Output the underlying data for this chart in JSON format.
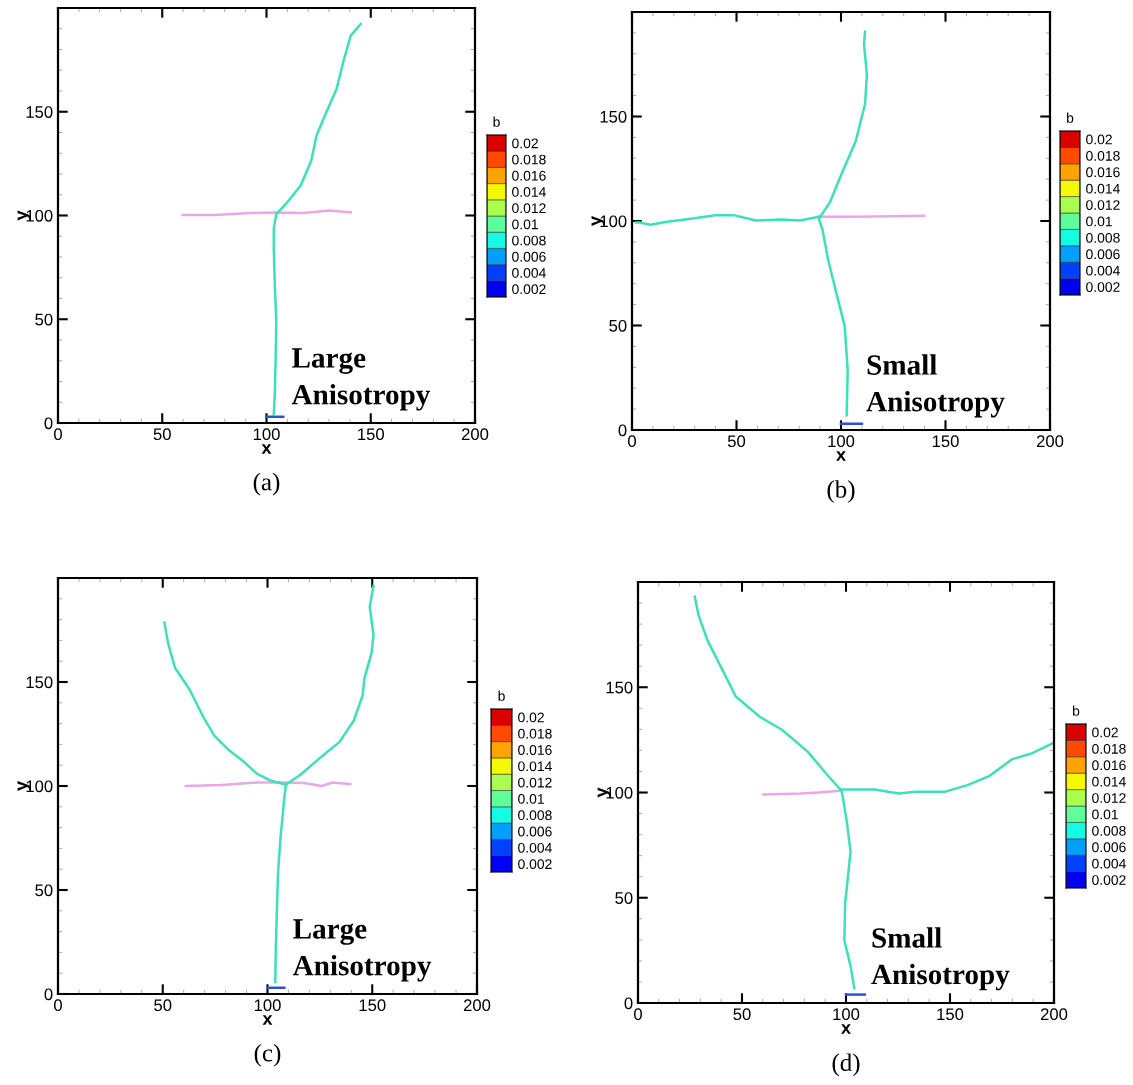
{
  "chart_data": [
    {
      "type": "line",
      "xlabel": "x",
      "ylabel": "y",
      "xlim": [
        0,
        200
      ],
      "ylim": [
        0,
        200
      ],
      "xticks": [
        0,
        50,
        100,
        150,
        200
      ],
      "yticks": [
        0,
        50,
        100,
        150
      ],
      "grid": false,
      "clabel": "b",
      "clim": [
        0.001,
        0.021
      ],
      "cticks": [
        0.002,
        0.004,
        0.006,
        0.008,
        0.01,
        0.012,
        0.014,
        0.016,
        0.018,
        0.02
      ],
      "annotations": [
        "Large\nAnisotropy",
        "(a)"
      ],
      "series": [
        {
          "color": "#e8a8e8",
          "x": [
            59.7,
            75.2,
            92.4,
            104.4,
            118,
            130,
            140.4
          ],
          "values": [
            100.2,
            100.2,
            101.2,
            101.5,
            101.2,
            102.4,
            101.5
          ]
        },
        {
          "color": "#3ee0b8",
          "x": [
            103.5,
            104,
            104.4,
            104.7,
            104,
            103.5,
            103.5,
            104.7,
            109.5,
            116.4,
            121.5,
            124,
            127.5,
            133.6,
            137,
            140.4,
            145.2
          ],
          "values": [
            4.3,
            14.6,
            31.8,
            49,
            66,
            83.5,
            93.8,
            100.7,
            105.8,
            114.5,
            126.5,
            138.6,
            147,
            161,
            174.7,
            186.7,
            192.3
          ]
        },
        {
          "color": "#3050d0",
          "x": [
            100,
            108
          ],
          "values": [
            3,
            3
          ]
        }
      ]
    },
    {
      "type": "line",
      "xlabel": "x",
      "ylabel": "y",
      "xlim": [
        0,
        200
      ],
      "ylim": [
        0,
        200
      ],
      "xticks": [
        0,
        50,
        100,
        150,
        200
      ],
      "yticks": [
        0,
        50,
        100,
        150
      ],
      "grid": false,
      "clabel": "b",
      "clim": [
        0.001,
        0.021
      ],
      "cticks": [
        0.002,
        0.004,
        0.006,
        0.008,
        0.01,
        0.012,
        0.014,
        0.016,
        0.018,
        0.02
      ],
      "annotations": [
        "Small\nAnisotropy",
        "(b)"
      ],
      "series": [
        {
          "color": "#e8a8e8",
          "x": [
            89.4,
            106.6,
            124.8,
            139.8
          ],
          "values": [
            102,
            102,
            102.3,
            102.5
          ]
        },
        {
          "color": "#3ee0b8",
          "x": [
            102.7,
            103.2,
            101.8,
            98.2,
            93.8,
            91.2,
            89.4,
            94.7,
            100.9,
            107,
            111.5,
            112.4,
            111,
            111.5
          ],
          "values": [
            7.1,
            28.4,
            49.6,
            63.8,
            81.6,
            95.7,
            101,
            109,
            124,
            138,
            156,
            170,
            184.4,
            190.6
          ]
        },
        {
          "color": "#3ee0b8",
          "x": [
            89.4,
            80.5,
            71.7,
            59.3,
            48.7,
            39.8,
            27.4,
            16.8,
            8.8,
            3.5,
            1.8
          ],
          "values": [
            102,
            100.2,
            100.7,
            100.2,
            102.8,
            102.8,
            101,
            99.6,
            98.2,
            99.3,
            99.3
          ]
        },
        {
          "color": "#3050d0",
          "x": [
            100,
            110
          ],
          "values": [
            3,
            3
          ]
        }
      ]
    },
    {
      "type": "line",
      "xlabel": "x",
      "ylabel": "y",
      "xlim": [
        0,
        200
      ],
      "ylim": [
        0,
        200
      ],
      "xticks": [
        0,
        50,
        100,
        150,
        200
      ],
      "yticks": [
        0,
        50,
        100,
        150
      ],
      "grid": false,
      "clabel": "b",
      "clim": [
        0.001,
        0.021
      ],
      "cticks": [
        0.002,
        0.004,
        0.006,
        0.008,
        0.01,
        0.012,
        0.014,
        0.016,
        0.018,
        0.02
      ],
      "annotations": [
        "Large\nAnisotropy",
        "(c)"
      ],
      "series": [
        {
          "color": "#e8a8e8",
          "x": [
            61,
            78,
            95,
            108.8,
            117.3,
            125.8,
            131,
            139.5
          ],
          "values": [
            100,
            100.5,
            101.7,
            101.7,
            101.4,
            100,
            101.7,
            100.9
          ]
        },
        {
          "color": "#3ee0b8",
          "x": [
            103.7,
            104,
            104.5,
            105,
            106.2,
            108,
            108.8,
            102,
            95.1,
            88.3,
            81.5,
            74.7,
            69.6,
            62.8,
            55.9,
            52.5,
            50.8
          ],
          "values": [
            5.7,
            23.6,
            40.8,
            57.9,
            75,
            93.8,
            100.7,
            102.4,
            105.8,
            112,
            117.3,
            124.1,
            132.7,
            146.4,
            156.7,
            168.8,
            178.6
          ]
        },
        {
          "color": "#3ee0b8",
          "x": [
            108.8,
            115.6,
            124.1,
            134.4,
            141.2,
            145.4,
            146.3,
            149.7,
            150.6,
            148.8,
            150.6
          ],
          "values": [
            100.7,
            105.3,
            112.7,
            121.2,
            131.5,
            143.5,
            152,
            164,
            172.6,
            186.3,
            196.2
          ]
        },
        {
          "color": "#3050d0",
          "x": [
            100,
            108
          ],
          "values": [
            3,
            3
          ]
        }
      ]
    },
    {
      "type": "line",
      "xlabel": "x",
      "ylabel": "y",
      "xlim": [
        0,
        200
      ],
      "ylim": [
        0,
        200
      ],
      "xticks": [
        0,
        50,
        100,
        150,
        200
      ],
      "yticks": [
        0,
        50,
        100,
        150
      ],
      "grid": false,
      "clabel": "b",
      "clim": [
        0.001,
        0.021
      ],
      "cticks": [
        0.002,
        0.004,
        0.006,
        0.008,
        0.01,
        0.012,
        0.014,
        0.016,
        0.018,
        0.02
      ],
      "annotations": [
        "Small\nAnisotropy",
        "(d)"
      ],
      "series": [
        {
          "color": "#e8a8e8",
          "x": [
            60.3,
            78.1,
            87,
            97.8
          ],
          "values": [
            99.1,
            99.5,
            100,
            100.9
          ]
        },
        {
          "color": "#3ee0b8",
          "x": [
            104,
            102.2,
            99.2,
            99.6,
            102.2,
            100.4,
            98.7,
            97.8,
            90.6,
            81.7,
            69.2,
            58.5,
            47,
            40.7,
            33.5,
            29.1,
            27.3
          ],
          "values": [
            7,
            17.5,
            29.8,
            47.4,
            71.9,
            86,
            96.5,
            100.9,
            108.8,
            119.3,
            129.8,
            136,
            145.6,
            158,
            172,
            184.2,
            193
          ]
        },
        {
          "color": "#3ee0b8",
          "x": [
            97.8,
            113.8,
            125.4,
            133.5,
            147.7,
            158.4,
            169.1,
            179.8,
            188.8,
            200
          ],
          "values": [
            101.4,
            101.4,
            99.5,
            100.4,
            100.4,
            103.5,
            107.9,
            115.8,
            118.4,
            123.7
          ]
        },
        {
          "color": "#3050d0",
          "x": [
            100,
            109
          ],
          "values": [
            4,
            4
          ]
        }
      ]
    }
  ]
}
